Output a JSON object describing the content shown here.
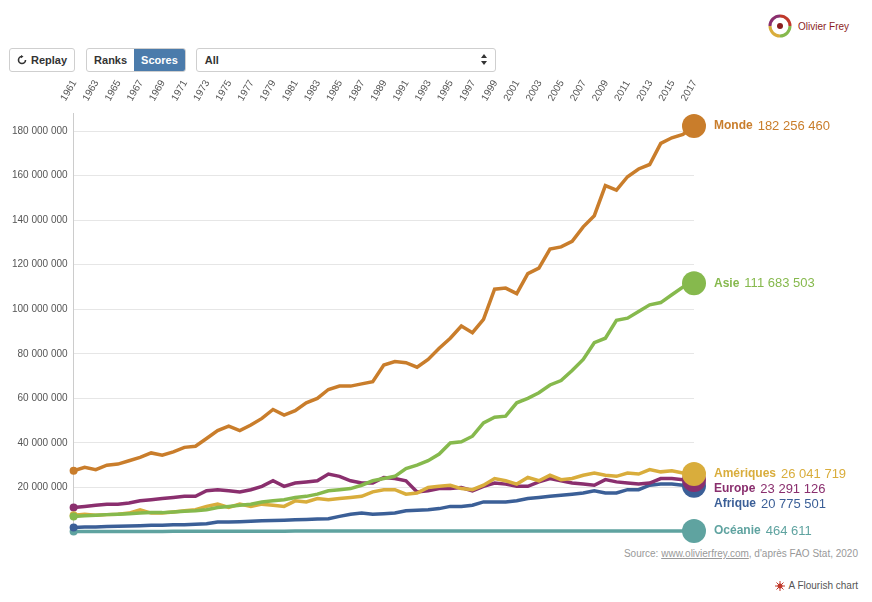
{
  "branding": "Olivier Frey",
  "controls": {
    "replay": "Replay",
    "toggle": [
      "Ranks",
      "Scores"
    ],
    "active": "Scores",
    "filter": "All"
  },
  "source": {
    "prefix": "Source: ",
    "link": "www.olivierfrey.com",
    "suffix": ", d'après FAO Stat, 2020"
  },
  "credit": "A Flourish chart",
  "chart_data": {
    "type": "line",
    "categories": [
      "1961",
      null,
      "1963",
      null,
      "1965",
      null,
      "1967",
      null,
      "1969",
      null,
      "1971",
      null,
      "1973",
      null,
      "1975",
      null,
      "1977",
      null,
      "1979",
      null,
      "1981",
      null,
      "1983",
      null,
      "1985",
      null,
      "1987",
      null,
      "1989",
      null,
      "1991",
      null,
      "1993",
      null,
      "1995",
      null,
      "1997",
      null,
      "1999",
      null,
      "2001",
      null,
      "2003",
      null,
      "2005",
      null,
      "2007",
      null,
      "2009",
      null,
      "2011",
      null,
      "2013",
      null,
      "2015",
      null,
      "2017"
    ],
    "ylim": [
      0,
      188000000
    ],
    "yticks": [
      {
        "value": 20000000,
        "label": "20 000 000"
      },
      {
        "value": 40000000,
        "label": "40 000 000"
      },
      {
        "value": 60000000,
        "label": "60 000 000"
      },
      {
        "value": 80000000,
        "label": "80 000 000"
      },
      {
        "value": 100000000,
        "label": "100 000 000"
      },
      {
        "value": 120000000,
        "label": "120 000 000"
      },
      {
        "value": 140000000,
        "label": "140 000 000"
      },
      {
        "value": 160000000,
        "label": "160 000 000"
      },
      {
        "value": 180000000,
        "label": "180 000 000"
      }
    ],
    "grid": true,
    "series": [
      {
        "name": "Monde",
        "color": "#c97d2b",
        "last_value_label": "182 256 460",
        "values": [
          27500000,
          29000000,
          28000000,
          30000000,
          30500000,
          32000000,
          33500000,
          35500000,
          34500000,
          36000000,
          38000000,
          38500000,
          42000000,
          45500000,
          47500000,
          45500000,
          48000000,
          51000000,
          55000000,
          52500000,
          54500000,
          58000000,
          60000000,
          64000000,
          65500000,
          65500000,
          66500000,
          67500000,
          75000000,
          76500000,
          76000000,
          74000000,
          77500000,
          82500000,
          87000000,
          92500000,
          89500000,
          95500000,
          109000000,
          109500000,
          107000000,
          116000000,
          118500000,
          127000000,
          128000000,
          130500000,
          137000000,
          142000000,
          155500000,
          153500000,
          159500000,
          163000000,
          165000000,
          174500000,
          177000000,
          178500000,
          182256460
        ]
      },
      {
        "name": "Asie",
        "color": "#86b94d",
        "last_value_label": "111 683 503",
        "values": [
          7000000,
          7300000,
          7500000,
          7800000,
          8000000,
          8200000,
          8500000,
          8800000,
          8700000,
          9000000,
          9300000,
          9500000,
          10000000,
          11000000,
          11500000,
          12000000,
          12500000,
          13500000,
          14000000,
          14500000,
          15500000,
          16000000,
          17000000,
          18500000,
          19000000,
          19500000,
          21000000,
          23000000,
          24000000,
          25000000,
          28500000,
          30000000,
          32000000,
          35000000,
          40000000,
          40500000,
          43000000,
          49000000,
          51500000,
          52000000,
          58000000,
          60000000,
          62500000,
          66000000,
          68000000,
          72500000,
          77500000,
          85000000,
          87000000,
          95000000,
          96000000,
          99000000,
          102000000,
          103000000,
          106500000,
          110000000,
          111683503
        ]
      },
      {
        "name": "Amériques",
        "color": "#d9ad3c",
        "last_value_label": "26 041 719",
        "values": [
          7500000,
          8000000,
          7500000,
          7800000,
          8000000,
          8500000,
          10000000,
          8500000,
          8500000,
          9000000,
          9500000,
          10000000,
          11500000,
          12500000,
          11000000,
          12500000,
          11500000,
          12500000,
          12000000,
          11500000,
          14000000,
          13500000,
          15000000,
          14500000,
          15000000,
          15500000,
          16000000,
          18000000,
          19000000,
          19000000,
          17000000,
          17500000,
          20000000,
          20500000,
          21000000,
          19500000,
          19000000,
          21000000,
          24000000,
          23000000,
          21500000,
          24500000,
          23000000,
          25500000,
          23500000,
          24000000,
          25500000,
          26500000,
          25500000,
          25000000,
          26500000,
          26000000,
          28000000,
          27000000,
          27500000,
          26500000,
          26041719
        ]
      },
      {
        "name": "Europe",
        "color": "#8a2f6e",
        "last_value_label": "23 291 126",
        "values": [
          11000000,
          11500000,
          12000000,
          12500000,
          12500000,
          13000000,
          14000000,
          14500000,
          15000000,
          15500000,
          16000000,
          16000000,
          18500000,
          19000000,
          18500000,
          18000000,
          19000000,
          20500000,
          23000000,
          20500000,
          22000000,
          22500000,
          23000000,
          26000000,
          25000000,
          23000000,
          22000000,
          22000000,
          24500000,
          24000000,
          23000000,
          18000000,
          18500000,
          19500000,
          19500000,
          20000000,
          18500000,
          20500000,
          22000000,
          21500000,
          20500000,
          20500000,
          22500000,
          24000000,
          23000000,
          22000000,
          21500000,
          21000000,
          23500000,
          22500000,
          22000000,
          21500000,
          22000000,
          24000000,
          24000000,
          23500000,
          23291126
        ]
      },
      {
        "name": "Afrique",
        "color": "#3b5f97",
        "last_value_label": "20 775 501",
        "values": [
          2000000,
          2200000,
          2300000,
          2500000,
          2600000,
          2700000,
          2800000,
          3000000,
          3000000,
          3200000,
          3300000,
          3500000,
          3700000,
          4500000,
          4500000,
          4600000,
          4800000,
          5000000,
          5200000,
          5300000,
          5500000,
          5600000,
          5800000,
          6000000,
          7000000,
          8000000,
          8500000,
          8000000,
          8200000,
          8500000,
          9500000,
          9800000,
          10000000,
          10500000,
          11500000,
          11500000,
          12000000,
          13500000,
          13500000,
          13500000,
          14000000,
          15000000,
          15500000,
          16000000,
          16500000,
          17000000,
          17500000,
          18500000,
          17500000,
          17500000,
          19000000,
          19000000,
          21000000,
          21500000,
          21500000,
          21000000,
          20775501
        ]
      },
      {
        "name": "Océanie",
        "color": "#5fa3a0",
        "last_value_label": "464 611",
        "values": [
          200000,
          210000,
          220000,
          230000,
          240000,
          250000,
          260000,
          270000,
          280000,
          290000,
          300000,
          310000,
          320000,
          330000,
          340000,
          350000,
          360000,
          370000,
          380000,
          390000,
          400000,
          400000,
          410000,
          410000,
          420000,
          420000,
          430000,
          430000,
          440000,
          440000,
          450000,
          450000,
          460000,
          460000,
          470000,
          470000,
          480000,
          480000,
          490000,
          500000,
          500000,
          490000,
          480000,
          480000,
          470000,
          470000,
          460000,
          460000,
          470000,
          470000,
          460000,
          470000,
          460000,
          460000,
          470000,
          460000,
          464611
        ]
      }
    ]
  }
}
